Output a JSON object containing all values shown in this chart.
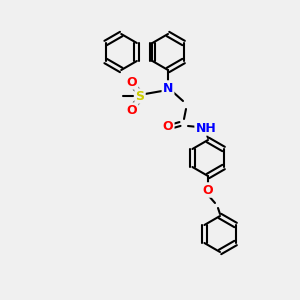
{
  "bg_color": "#f0f0f0",
  "bond_color": "#000000",
  "bond_width": 1.5,
  "atom_colors": {
    "N": "#0000ff",
    "O": "#ff0000",
    "S": "#cccc00",
    "H": "#008080",
    "C": "#000000"
  }
}
